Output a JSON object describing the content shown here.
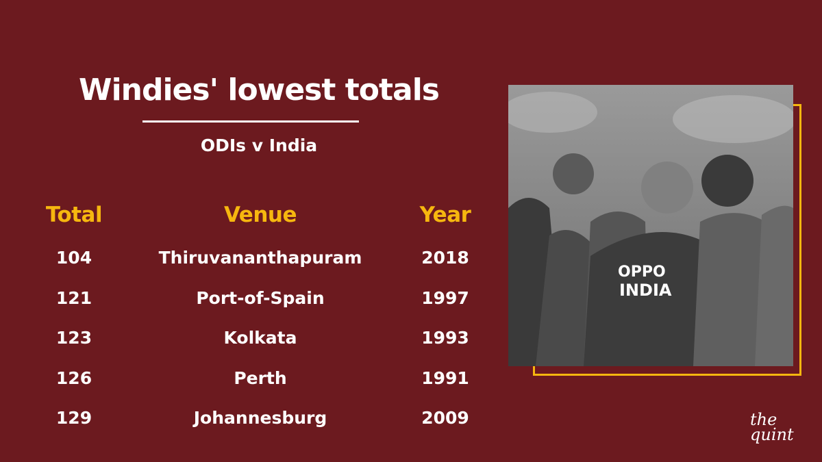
{
  "header": {
    "title": "Windies' lowest totals",
    "subtitle": "ODIs v India"
  },
  "table": {
    "columns": [
      "Total",
      "Venue",
      "Year"
    ],
    "rows": [
      [
        104,
        "Thiruvananthapuram",
        2018
      ],
      [
        121,
        "Port-of-Spain",
        1997
      ],
      [
        123,
        "Kolkata",
        1993
      ],
      [
        126,
        "Perth",
        1991
      ],
      [
        129,
        "Johannesburg",
        2009
      ]
    ]
  },
  "logo": {
    "line1": "the",
    "line2": "quint"
  }
}
